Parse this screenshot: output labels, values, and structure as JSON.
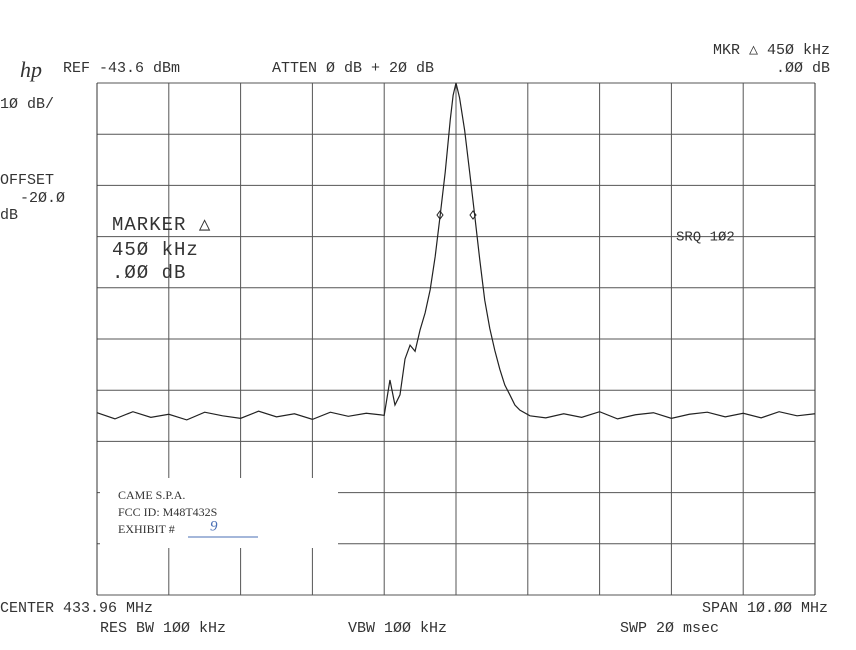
{
  "chart_data": {
    "type": "line",
    "labels": [
      "hp",
      "REF -43.6 dBm",
      "ATTEN Ø dB  + 2Ø dB",
      "MKR △ 45Ø kHz",
      ".ØØ dB",
      "1Ø dB/",
      "OFFSET",
      "-2Ø.Ø",
      "dB",
      "MARKER △",
      "45Ø kHz",
      ".ØØ dB",
      "SRQ 1Ø2",
      "CENTER 433.96 MHz",
      "RES BW 1ØØ kHz",
      "VBW 1ØØ kHz",
      "SPAN 1Ø.ØØ MHz",
      "SWP 2Ø msec"
    ],
    "exhibit": [
      "CAME S.P.A.",
      "FCC ID: M48T432S",
      "EXHIBIT #",
      "9"
    ],
    "xlim": [
      428.96,
      438.96
    ],
    "ylim": [
      -143.6,
      -43.6
    ],
    "xticks": [
      428.96,
      429.96,
      430.96,
      431.96,
      432.96,
      433.96,
      434.96,
      435.96,
      436.96,
      437.96,
      438.96
    ],
    "yticks": [
      -143.6,
      -133.6,
      -123.6,
      -113.6,
      -103.6,
      -93.6,
      -83.6,
      -73.6,
      -63.6,
      -53.6,
      -43.6
    ],
    "grid": true,
    "series": [
      {
        "color": "#222",
        "x": [
          428.96,
          429.21,
          429.46,
          429.71,
          429.96,
          430.21,
          430.46,
          430.71,
          430.96,
          431.21,
          431.46,
          431.71,
          431.96,
          432.21,
          432.46,
          432.71,
          432.96,
          433.04,
          433.11,
          433.18,
          433.25,
          433.32,
          433.39,
          433.46,
          433.53,
          433.6,
          433.67,
          433.74,
          433.81,
          433.88,
          433.92,
          433.96,
          434.01,
          434.08,
          434.15,
          434.22,
          434.29,
          434.36,
          434.43,
          434.5,
          434.57,
          434.64,
          434.71,
          434.78,
          434.85,
          434.99,
          435.21,
          435.46,
          435.71,
          435.96,
          436.21,
          436.46,
          436.71,
          436.96,
          437.21,
          437.46,
          437.71,
          437.96,
          438.21,
          438.46,
          438.71,
          438.96
        ],
        "values": [
          -108.0,
          -109.2,
          -107.8,
          -108.9,
          -108.3,
          -109.4,
          -107.9,
          -108.6,
          -109.1,
          -107.7,
          -108.8,
          -108.2,
          -109.3,
          -107.9,
          -108.7,
          -108.1,
          -108.5,
          -101.6,
          -106.5,
          -104.5,
          -97.5,
          -94.8,
          -96.0,
          -91.8,
          -88.5,
          -84.0,
          -77.5,
          -69.4,
          -61.0,
          -50.8,
          -46.0,
          -43.6,
          -46.5,
          -52.8,
          -61.0,
          -69.4,
          -78.0,
          -86.0,
          -91.5,
          -95.8,
          -99.5,
          -102.6,
          -104.5,
          -106.5,
          -107.5,
          -108.6,
          -109.0,
          -108.2,
          -108.9,
          -107.8,
          -109.2,
          -108.4,
          -108.0,
          -109.1,
          -108.3,
          -107.9,
          -108.8,
          -108.1,
          -109.0,
          -107.8,
          -108.6,
          -108.2
        ]
      }
    ]
  }
}
